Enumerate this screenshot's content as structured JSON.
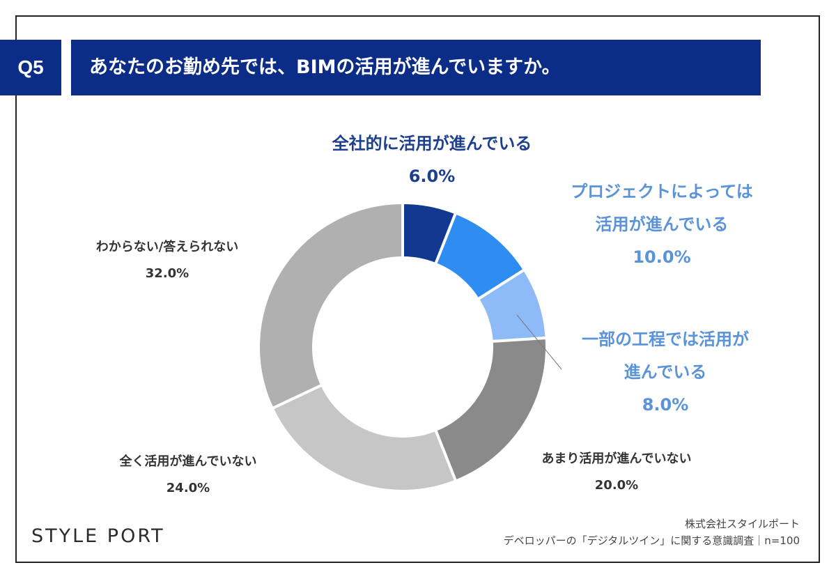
{
  "header": {
    "question_no": "Q5",
    "question": "あなたのお勤め先では、BIMの活用が進んでいますか。"
  },
  "chart_data": {
    "type": "pie",
    "donut": true,
    "categories": [
      "全社的に活用が進んでいる",
      "プロジェクトによっては活用が進んでいる",
      "一部の工程では活用が進んでいる",
      "あまり活用が進んでいない",
      "全く活用が進んでいない",
      "わからない/答えられない"
    ],
    "values": [
      6.0,
      10.0,
      8.0,
      20.0,
      24.0,
      32.0
    ],
    "value_labels": [
      "6.0%",
      "10.0%",
      "8.0%",
      "20.0%",
      "24.0%",
      "32.0%"
    ],
    "colors": [
      "#12388f",
      "#2f8df2",
      "#8ebaf7",
      "#8a8a8a",
      "#c6c6c6",
      "#b0b0b0"
    ],
    "label_lines": [
      [
        "全社的に活用が進んでいる"
      ],
      [
        "プロジェクトによっては",
        "活用が進んでいる"
      ],
      [
        "一部の工程では活用が",
        "進んでいる"
      ],
      [
        "あまり活用が進んでいない"
      ],
      [
        "全く活用が進んでいない"
      ],
      [
        "わからない/答えられない"
      ]
    ]
  },
  "footer": {
    "logo": "STYLE PORT",
    "source_line1": "株式会社スタイルポート",
    "source_line2": "デベロッパーの「デジタルツイン」に関する意識調査｜n=100"
  }
}
